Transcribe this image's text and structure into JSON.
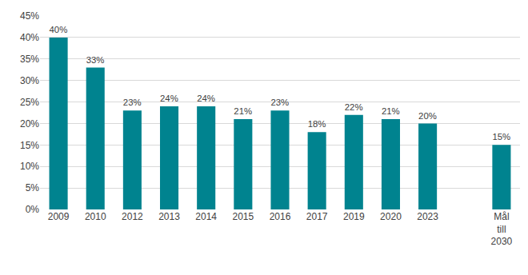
{
  "chart_data": {
    "type": "bar",
    "categories": [
      "2009",
      "2010",
      "2012",
      "2013",
      "2014",
      "2015",
      "2016",
      "2017",
      "2019",
      "2020",
      "2023",
      null,
      "Mål\ntill\n2030"
    ],
    "values": [
      40,
      33,
      23,
      24,
      24,
      21,
      23,
      18,
      22,
      21,
      20,
      null,
      15
    ],
    "value_labels": [
      "40%",
      "33%",
      "23%",
      "24%",
      "24%",
      "21%",
      "23%",
      "18%",
      "22%",
      "21%",
      "20%",
      null,
      "15%"
    ],
    "color": "#00838f",
    "ylim": [
      0,
      45
    ],
    "yticks": [
      {
        "value": 0,
        "label": "0%"
      },
      {
        "value": 5,
        "label": "5%"
      },
      {
        "value": 10,
        "label": "10%"
      },
      {
        "value": 15,
        "label": "15%"
      },
      {
        "value": 20,
        "label": "20%"
      },
      {
        "value": 25,
        "label": "25%"
      },
      {
        "value": 30,
        "label": "30%"
      },
      {
        "value": 35,
        "label": "35%"
      },
      {
        "value": 40,
        "label": "40%"
      },
      {
        "value": 45,
        "label": "45%"
      }
    ],
    "grid": true,
    "data_labels": true
  }
}
